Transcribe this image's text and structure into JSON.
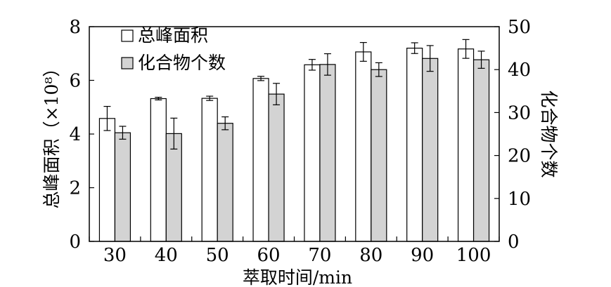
{
  "chart_data": {
    "type": "bar",
    "categories": [
      "30",
      "40",
      "50",
      "60",
      "70",
      "80",
      "90",
      "100"
    ],
    "xlabel": "萃取时间/min",
    "ylabel_left": "总峰面积（×10⁸）",
    "ylabel_right": "化合物个数",
    "ylim_left": [
      0,
      8
    ],
    "yticks_left": [
      0,
      2,
      4,
      6,
      8
    ],
    "ylim_right": [
      0,
      50
    ],
    "yticks_right": [
      0,
      10,
      20,
      30,
      40,
      50
    ],
    "legend_position": "top-left",
    "grid": false,
    "series": [
      {
        "name": "总峰面积",
        "axis": "left",
        "color": "#ffffff",
        "values": [
          4.58,
          5.32,
          5.33,
          6.07,
          6.58,
          7.06,
          7.2,
          7.17
        ],
        "errors": [
          0.45,
          0.05,
          0.08,
          0.08,
          0.2,
          0.35,
          0.2,
          0.35
        ]
      },
      {
        "name": "化合物个数",
        "axis": "right",
        "color": "#d3d3d3",
        "values": [
          25.3,
          25.1,
          27.5,
          34.3,
          41.2,
          40.0,
          42.6,
          42.3
        ],
        "errors": [
          1.5,
          3.6,
          1.5,
          2.5,
          2.5,
          1.6,
          3.0,
          2.0
        ]
      }
    ]
  }
}
